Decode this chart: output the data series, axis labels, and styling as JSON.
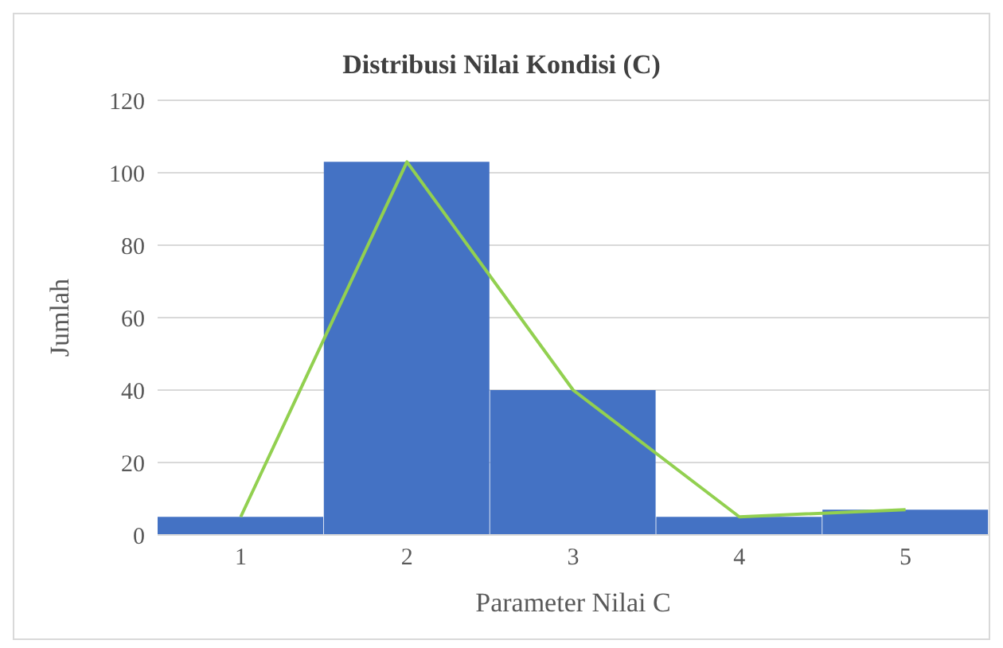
{
  "chart_data": {
    "type": "bar",
    "title": "Distribusi  Nilai Kondisi (C)",
    "xlabel": "Parameter Nilai C",
    "ylabel": "Jumlah",
    "categories": [
      "1",
      "2",
      "3",
      "4",
      "5"
    ],
    "series": [
      {
        "color": "#4472c4",
        "values": [
          5,
          103,
          40,
          5,
          7
        ]
      },
      {
        "type": "line",
        "color": "#92d050",
        "values": [
          5,
          103,
          40,
          5,
          7
        ]
      }
    ],
    "ylim": [
      0,
      120
    ],
    "yticks": [
      0,
      20,
      40,
      60,
      80,
      100,
      120
    ],
    "grid": "y",
    "legend": false,
    "marker": "none"
  }
}
